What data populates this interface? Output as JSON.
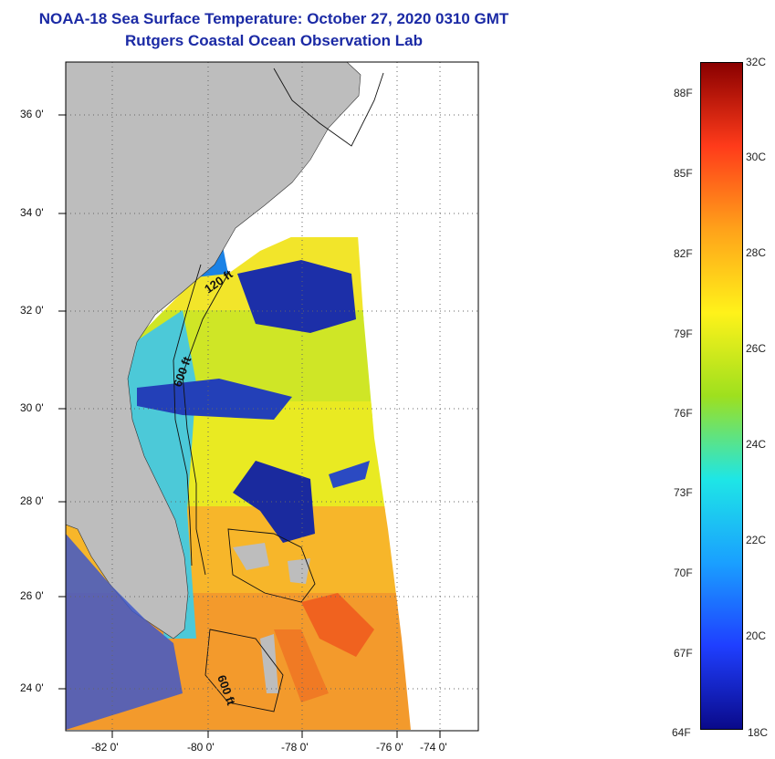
{
  "header": {
    "title": "NOAA-18 Sea Surface Temperature:  October 27, 2020 0310 GMT",
    "subtitle": "Rutgers Coastal Ocean Observation Lab"
  },
  "map": {
    "longitude_labels": [
      "-82 0'",
      "-80 0'",
      "-78 0'",
      "-76 0'",
      "-74 0'"
    ],
    "latitude_labels": [
      "36 0'",
      "34 0'",
      "32 0'",
      "30 0'",
      "28 0'",
      "26 0'",
      "24 0'"
    ],
    "contour_labels": [
      "120 ft",
      "600 ft",
      "600 ft"
    ],
    "colors": {
      "land": "#bdbdbd",
      "cloud_mask": "#ffffff"
    }
  },
  "colorbar": {
    "fahrenheit_labels": [
      "88F",
      "85F",
      "82F",
      "79F",
      "76F",
      "73F",
      "70F",
      "67F",
      "64F"
    ],
    "celsius_labels": [
      "32C",
      "30C",
      "28C",
      "26C",
      "24C",
      "22C",
      "20C",
      "18C"
    ],
    "range_c": [
      18,
      32
    ],
    "colors": [
      "#0a0a8a",
      "#1f3fff",
      "#1aa0ff",
      "#1ee6e6",
      "#9ee01e",
      "#fff21a",
      "#ffa21a",
      "#ff3b1a",
      "#8a0000"
    ]
  }
}
